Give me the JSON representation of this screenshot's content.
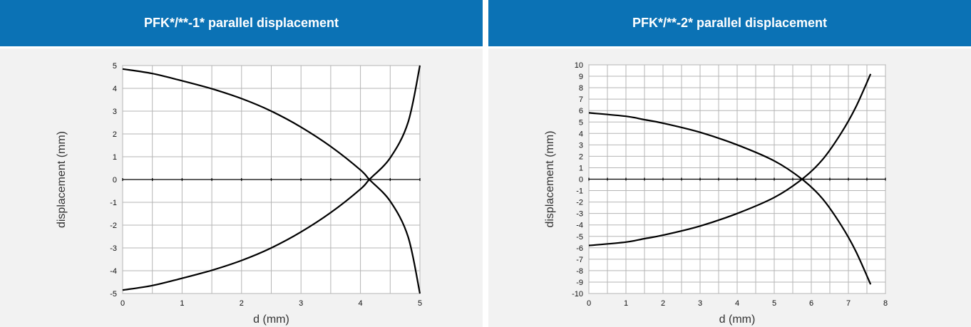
{
  "chart_data": [
    {
      "type": "line",
      "title": "PFK*/**-1* parallel displacement",
      "xlabel": "d (mm)",
      "ylabel": "displacement (mm)",
      "xlim": [
        0,
        5
      ],
      "ylim": [
        -5,
        5
      ],
      "xticks": [
        "0",
        "1",
        "2",
        "3",
        "4",
        "5"
      ],
      "yticks": [
        "5",
        "4",
        "3",
        "2",
        "1",
        "0",
        "-1",
        "-2",
        "-3",
        "-4",
        "-5"
      ],
      "grid": true,
      "series": [
        {
          "x": [
            0,
            0.5,
            1,
            1.5,
            2,
            2.5,
            3,
            3.5,
            4,
            4.15,
            4.5,
            4.8,
            5
          ],
          "y": [
            4.85,
            4.65,
            4.33,
            3.98,
            3.55,
            3.0,
            2.3,
            1.45,
            0.42,
            0.0,
            -0.95,
            -2.5,
            -5.0
          ]
        },
        {
          "x": [
            0,
            0.5,
            1,
            1.5,
            2,
            2.5,
            3,
            3.5,
            4,
            4.15,
            4.5,
            4.8,
            5
          ],
          "y": [
            -4.85,
            -4.65,
            -4.33,
            -3.98,
            -3.55,
            -3.0,
            -2.3,
            -1.45,
            -0.42,
            0.0,
            0.95,
            2.5,
            5.0
          ]
        }
      ]
    },
    {
      "type": "line",
      "title": "PFK*/**-2* parallel displacement",
      "xlabel": "d (mm)",
      "ylabel": "displacement (mm)",
      "xlim": [
        0,
        8
      ],
      "ylim": [
        -10,
        10
      ],
      "xticks": [
        "0",
        "1",
        "2",
        "3",
        "4",
        "5",
        "6",
        "7",
        "8"
      ],
      "yticks": [
        "10",
        "9",
        "8",
        "7",
        "6",
        "5",
        "4",
        "3",
        "2",
        "1",
        "0",
        "-1",
        "-2",
        "-3",
        "-4",
        "-5",
        "-6",
        "-7",
        "-8",
        "-9",
        "-10"
      ],
      "grid": true,
      "series": [
        {
          "x": [
            0,
            1,
            1.5,
            2,
            3,
            4,
            5,
            5.75,
            6.3,
            6.8,
            7.2,
            7.6
          ],
          "y": [
            5.8,
            5.5,
            5.2,
            4.9,
            4.1,
            3.0,
            1.6,
            0.0,
            -1.7,
            -4.0,
            -6.3,
            -9.2
          ]
        },
        {
          "x": [
            0,
            1,
            1.5,
            2,
            3,
            4,
            5,
            5.75,
            6.3,
            6.8,
            7.2,
            7.6
          ],
          "y": [
            -5.8,
            -5.5,
            -5.2,
            -4.9,
            -4.1,
            -3.0,
            -1.6,
            0.0,
            1.7,
            4.0,
            6.3,
            9.2
          ]
        }
      ]
    }
  ]
}
